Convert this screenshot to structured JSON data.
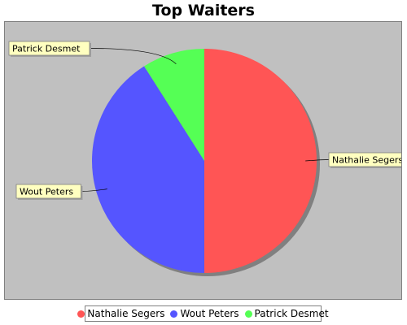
{
  "chart_data": {
    "type": "pie",
    "title": "Top Waiters",
    "categories": [
      "Nathalie Segers",
      "Wout Peters",
      "Patrick Desmet"
    ],
    "values": [
      50,
      41,
      9
    ],
    "colors": [
      "#ff5555",
      "#5555ff",
      "#55ff55"
    ],
    "legend": "bottom",
    "labels_callout": true
  }
}
